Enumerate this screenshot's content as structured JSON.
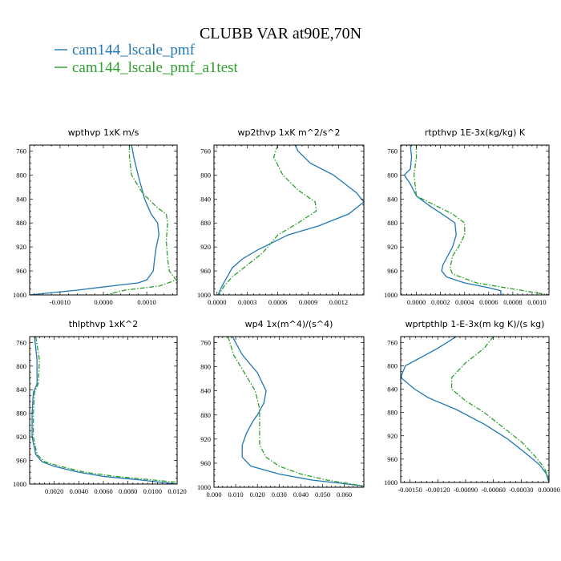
{
  "figure": {
    "title": "CLUBB VAR at90E,70N",
    "legend": [
      {
        "label": "cam144_lscale_pmf",
        "color": "#1f77b4",
        "dash": "solid"
      },
      {
        "label": "cam144_lscale_pmf_a1test",
        "color": "#2ca02c",
        "dash": "dashdot"
      }
    ]
  },
  "chart_data": [
    {
      "type": "line",
      "title": "wpthvp   1xK m/s",
      "xlim": [
        -0.0017,
        0.0017
      ],
      "ylim": [
        750,
        1000
      ],
      "yinvert": true,
      "xticks": [
        -0.001,
        0.0,
        0.001
      ],
      "xtick_labels": [
        "-0.0010",
        "0.0000",
        "0.0010"
      ],
      "yticks": [
        760,
        800,
        840,
        880,
        920,
        960,
        1000
      ],
      "series": [
        {
          "color": "#1f77b4",
          "dash": "solid",
          "points": [
            [
              0.00065,
              750
            ],
            [
              0.0007,
              770
            ],
            [
              0.0008,
              800
            ],
            [
              0.00095,
              840
            ],
            [
              0.0011,
              865
            ],
            [
              0.00125,
              880
            ],
            [
              0.00128,
              900
            ],
            [
              0.00122,
              920
            ],
            [
              0.00118,
              940
            ],
            [
              0.00115,
              960
            ],
            [
              0.001,
              975
            ],
            [
              0.0008,
              980
            ],
            [
              0.0002,
              985
            ],
            [
              -0.0006,
              992
            ],
            [
              -0.0017,
              1000
            ]
          ]
        },
        {
          "color": "#2ca02c",
          "dash": "dashdot",
          "points": [
            [
              0.0006,
              750
            ],
            [
              0.0006,
              770
            ],
            [
              0.00065,
              800
            ],
            [
              0.0009,
              830
            ],
            [
              0.00125,
              855
            ],
            [
              0.00145,
              865
            ],
            [
              0.00148,
              880
            ],
            [
              0.00145,
              910
            ],
            [
              0.00148,
              940
            ],
            [
              0.00152,
              960
            ],
            [
              0.00168,
              975
            ],
            [
              0.0013,
              985
            ],
            [
              0.0005,
              992
            ],
            [
              5e-05,
              1000
            ]
          ]
        }
      ]
    },
    {
      "type": "line",
      "title": "wp2thvp   1xK m^2/s^2",
      "xlim": [
        -3e-05,
        0.00145
      ],
      "ylim": [
        750,
        1000
      ],
      "yinvert": true,
      "xticks": [
        0.0,
        0.0003,
        0.0006,
        0.0009,
        0.0012
      ],
      "xtick_labels": [
        "0.0000",
        "0.0003",
        "0.0006",
        "0.0009",
        "0.0012"
      ],
      "yticks": [
        760,
        800,
        840,
        880,
        920,
        960,
        1000
      ],
      "series": [
        {
          "color": "#1f77b4",
          "dash": "solid",
          "points": [
            [
              0.00077,
              750
            ],
            [
              0.0008,
              760
            ],
            [
              0.00092,
              780
            ],
            [
              0.00115,
              800
            ],
            [
              0.00138,
              830
            ],
            [
              0.00145,
              845
            ],
            [
              0.0013,
              865
            ],
            [
              0.001,
              885
            ],
            [
              0.0007,
              900
            ],
            [
              0.0004,
              925
            ],
            [
              0.00025,
              940
            ],
            [
              0.00015,
              955
            ],
            [
              0.0001,
              970
            ],
            [
              5e-05,
              985
            ],
            [
              1e-05,
              1000
            ]
          ]
        },
        {
          "color": "#2ca02c",
          "dash": "dashdot",
          "points": [
            [
              0.0006,
              750
            ],
            [
              0.00056,
              770
            ],
            [
              0.00065,
              800
            ],
            [
              0.0008,
              825
            ],
            [
              0.00097,
              845
            ],
            [
              0.00098,
              860
            ],
            [
              0.0008,
              880
            ],
            [
              0.0006,
              900
            ],
            [
              0.00045,
              930
            ],
            [
              0.0003,
              950
            ],
            [
              0.00015,
              970
            ],
            [
              7e-05,
              985
            ],
            [
              2e-05,
              1000
            ]
          ]
        }
      ]
    },
    {
      "type": "line",
      "title": "rtpthvp   1E-3x(kg/kg) K",
      "xlim": [
        -0.00013,
        0.0011
      ],
      "ylim": [
        750,
        1000
      ],
      "yinvert": true,
      "xticks": [
        0.0,
        0.0002,
        0.0004,
        0.0006,
        0.0008,
        0.001
      ],
      "xtick_labels": [
        "0.0000",
        "0.0002",
        "0.0004",
        "0.0006",
        "0.0008",
        "0.0010"
      ],
      "yticks": [
        760,
        800,
        840,
        880,
        920,
        960,
        1000
      ],
      "series": [
        {
          "color": "#1f77b4",
          "dash": "solid",
          "points": [
            [
              -5e-05,
              750
            ],
            [
              -4e-05,
              770
            ],
            [
              -5e-05,
              790
            ],
            [
              -0.0001,
              800
            ],
            [
              -5e-05,
              815
            ],
            [
              0.0,
              835
            ],
            [
              0.0001,
              850
            ],
            [
              0.00025,
              870
            ],
            [
              0.00032,
              880
            ],
            [
              0.00033,
              900
            ],
            [
              0.0003,
              920
            ],
            [
              0.00026,
              935
            ],
            [
              0.00022,
              950
            ],
            [
              0.00021,
              960
            ],
            [
              0.00025,
              970
            ],
            [
              0.0004,
              980
            ],
            [
              0.0006,
              988
            ],
            [
              0.0007,
              993
            ],
            [
              0.0007,
              1000
            ]
          ]
        },
        {
          "color": "#2ca02c",
          "dash": "dashdot",
          "points": [
            [
              0.0,
              750
            ],
            [
              0.0,
              770
            ],
            [
              -2e-05,
              800
            ],
            [
              0.0,
              835
            ],
            [
              0.0001,
              845
            ],
            [
              0.0003,
              865
            ],
            [
              0.0004,
              880
            ],
            [
              0.0004,
              900
            ],
            [
              0.00035,
              920
            ],
            [
              0.0003,
              935
            ],
            [
              0.00028,
              955
            ],
            [
              0.0003,
              965
            ],
            [
              0.0005,
              980
            ],
            [
              0.0008,
              990
            ],
            [
              0.0011,
              1000
            ]
          ]
        }
      ]
    },
    {
      "type": "line",
      "title": "thlpthvp   1xK^2",
      "xlim": [
        0.0,
        0.012
      ],
      "ylim": [
        750,
        1000
      ],
      "yinvert": true,
      "xticks": [
        0.002,
        0.004,
        0.006,
        0.008,
        0.01,
        0.012
      ],
      "xtick_labels": [
        "0.0020",
        "0.0040",
        "0.0060",
        "0.0080",
        "0.0100",
        "0.0120"
      ],
      "yticks": [
        760,
        800,
        840,
        880,
        920,
        960,
        1000
      ],
      "series": [
        {
          "color": "#1f77b4",
          "dash": "solid",
          "points": [
            [
              0.0004,
              750
            ],
            [
              0.0006,
              790
            ],
            [
              0.0006,
              830
            ],
            [
              0.0003,
              845
            ],
            [
              0.0002,
              880
            ],
            [
              0.0002,
              920
            ],
            [
              0.0005,
              950
            ],
            [
              0.001,
              962
            ],
            [
              0.002,
              970
            ],
            [
              0.004,
              980
            ],
            [
              0.006,
              987
            ],
            [
              0.009,
              993
            ],
            [
              0.012,
              1000
            ]
          ]
        },
        {
          "color": "#2ca02c",
          "dash": "dashdot",
          "points": [
            [
              0.0005,
              750
            ],
            [
              0.0008,
              790
            ],
            [
              0.0007,
              830
            ],
            [
              0.0004,
              845
            ],
            [
              0.0003,
              880
            ],
            [
              0.0003,
              920
            ],
            [
              0.0006,
              950
            ],
            [
              0.0012,
              962
            ],
            [
              0.0025,
              970
            ],
            [
              0.0045,
              980
            ],
            [
              0.007,
              987
            ],
            [
              0.01,
              993
            ],
            [
              0.012,
              997
            ]
          ]
        }
      ]
    },
    {
      "type": "line",
      "title": "wp4   1x(m^4)/(s^4)",
      "xlim": [
        0.0,
        0.069
      ],
      "ylim": [
        750,
        1000
      ],
      "yinvert": true,
      "xticks": [
        0.0,
        0.01,
        0.02,
        0.03,
        0.04,
        0.05,
        0.06
      ],
      "xtick_labels": [
        "0.000",
        "0.010",
        "0.020",
        "0.030",
        "0.040",
        "0.050",
        "0.060"
      ],
      "yticks": [
        760,
        800,
        840,
        880,
        920,
        960,
        1000
      ],
      "series": [
        {
          "color": "#1f77b4",
          "dash": "solid",
          "points": [
            [
              0.0085,
              750
            ],
            [
              0.013,
              780
            ],
            [
              0.02,
              810
            ],
            [
              0.024,
              840
            ],
            [
              0.023,
              860
            ],
            [
              0.02,
              880
            ],
            [
              0.018,
              890
            ],
            [
              0.015,
              910
            ],
            [
              0.013,
              930
            ],
            [
              0.013,
              950
            ],
            [
              0.017,
              965
            ],
            [
              0.03,
              978
            ],
            [
              0.045,
              988
            ],
            [
              0.06,
              994
            ],
            [
              0.069,
              998
            ]
          ]
        },
        {
          "color": "#2ca02c",
          "dash": "dashdot",
          "points": [
            [
              0.0065,
              750
            ],
            [
              0.009,
              780
            ],
            [
              0.014,
              810
            ],
            [
              0.019,
              840
            ],
            [
              0.021,
              870
            ],
            [
              0.021,
              890
            ],
            [
              0.021,
              910
            ],
            [
              0.021,
              930
            ],
            [
              0.024,
              950
            ],
            [
              0.03,
              965
            ],
            [
              0.04,
              978
            ],
            [
              0.052,
              988
            ],
            [
              0.062,
              994
            ],
            [
              0.069,
              998
            ]
          ]
        }
      ]
    },
    {
      "type": "line",
      "title": "wprtpthlp   1-E-3x(m kg K)/(s kg)",
      "xlim": [
        -0.0016,
        0.0
      ],
      "ylim": [
        750,
        1000
      ],
      "yinvert": true,
      "xticks": [
        -0.0015,
        -0.0012,
        -0.0009,
        -0.0006,
        -0.0003,
        0.0
      ],
      "xtick_labels": [
        "-0.00150",
        "-0.00120",
        "-0.00090",
        "-0.00060",
        "-0.00030",
        "0.00000"
      ],
      "yticks": [
        760,
        800,
        840,
        880,
        920,
        960,
        1000
      ],
      "series": [
        {
          "color": "#1f77b4",
          "dash": "solid",
          "points": [
            [
              -0.001,
              750
            ],
            [
              -0.0012,
              770
            ],
            [
              -0.00155,
              800
            ],
            [
              -0.0016,
              820
            ],
            [
              -0.00145,
              840
            ],
            [
              -0.0013,
              855
            ],
            [
              -0.001,
              875
            ],
            [
              -0.0007,
              900
            ],
            [
              -0.00045,
              925
            ],
            [
              -0.00025,
              950
            ],
            [
              -0.0001,
              970
            ],
            [
              -3e-05,
              985
            ],
            [
              0.0,
              1000
            ]
          ]
        },
        {
          "color": "#2ca02c",
          "dash": "dashdot",
          "points": [
            [
              -0.0006,
              750
            ],
            [
              -0.0007,
              770
            ],
            [
              -0.0009,
              795
            ],
            [
              -0.00105,
              820
            ],
            [
              -0.00105,
              840
            ],
            [
              -0.0009,
              860
            ],
            [
              -0.0007,
              880
            ],
            [
              -0.0005,
              905
            ],
            [
              -0.0003,
              930
            ],
            [
              -0.00015,
              955
            ],
            [
              -5e-05,
              975
            ],
            [
              0.0,
              995
            ]
          ]
        }
      ]
    }
  ]
}
